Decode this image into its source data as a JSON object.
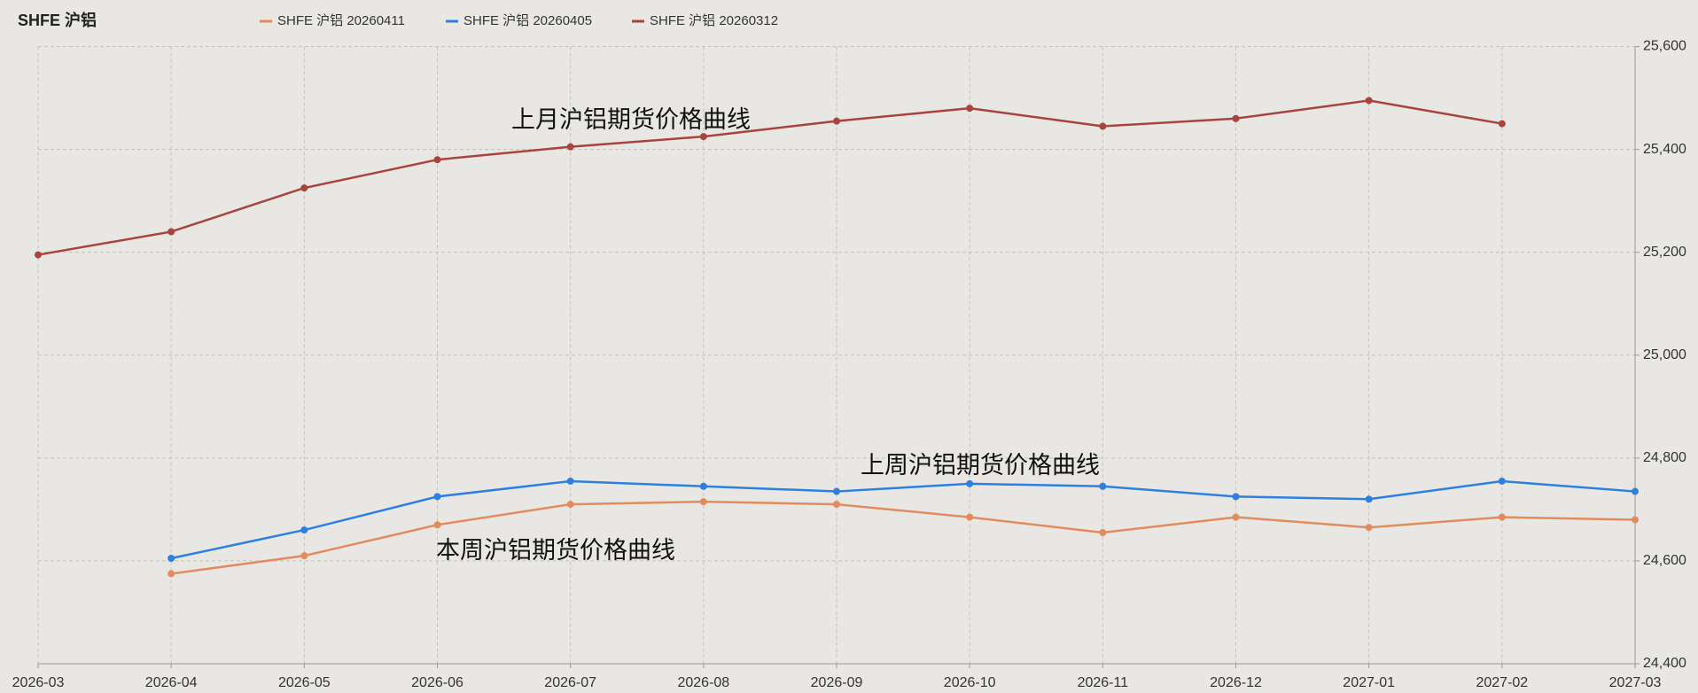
{
  "chart_data": {
    "type": "line",
    "title": "SHFE 沪铝",
    "categories": [
      "2026-03",
      "2026-04",
      "2026-05",
      "2026-06",
      "2026-07",
      "2026-08",
      "2026-09",
      "2026-10",
      "2026-11",
      "2026-12",
      "2027-01",
      "2027-02",
      "2027-03"
    ],
    "series": [
      {
        "name": "SHFE 沪铝 20260411",
        "color": "#e08c5e",
        "values": [
          null,
          24575,
          24610,
          24670,
          24710,
          24715,
          24710,
          24685,
          24655,
          24685,
          24665,
          24685,
          24680
        ]
      },
      {
        "name": "SHFE 沪铝 20260405",
        "color": "#2d7fe0",
        "values": [
          null,
          24605,
          24660,
          24725,
          24755,
          24745,
          24735,
          24750,
          24745,
          24725,
          24720,
          24755,
          24735
        ]
      },
      {
        "name": "SHFE 沪铝 20260312",
        "color": "#a8433f",
        "values": [
          25195,
          25240,
          25325,
          25380,
          25405,
          25425,
          25455,
          25480,
          25445,
          25460,
          25495,
          25450,
          null
        ]
      }
    ],
    "ylim": [
      24400,
      25600
    ],
    "yticks": [
      {
        "value": 24400,
        "label": "24,400"
      },
      {
        "value": 24600,
        "label": "24,600"
      },
      {
        "value": 24800,
        "label": "24,800"
      },
      {
        "value": 25000,
        "label": "25,000"
      },
      {
        "value": 25200,
        "label": "25,200"
      },
      {
        "value": 25400,
        "label": "25,400"
      },
      {
        "value": 25600,
        "label": "25,600"
      }
    ],
    "y_axis_side": "right",
    "grid": true,
    "legend": "top",
    "annotations": [
      "上月沪铝期货价格曲线",
      "上周沪铝期货价格曲线",
      "本周沪铝期货价格曲线"
    ]
  }
}
